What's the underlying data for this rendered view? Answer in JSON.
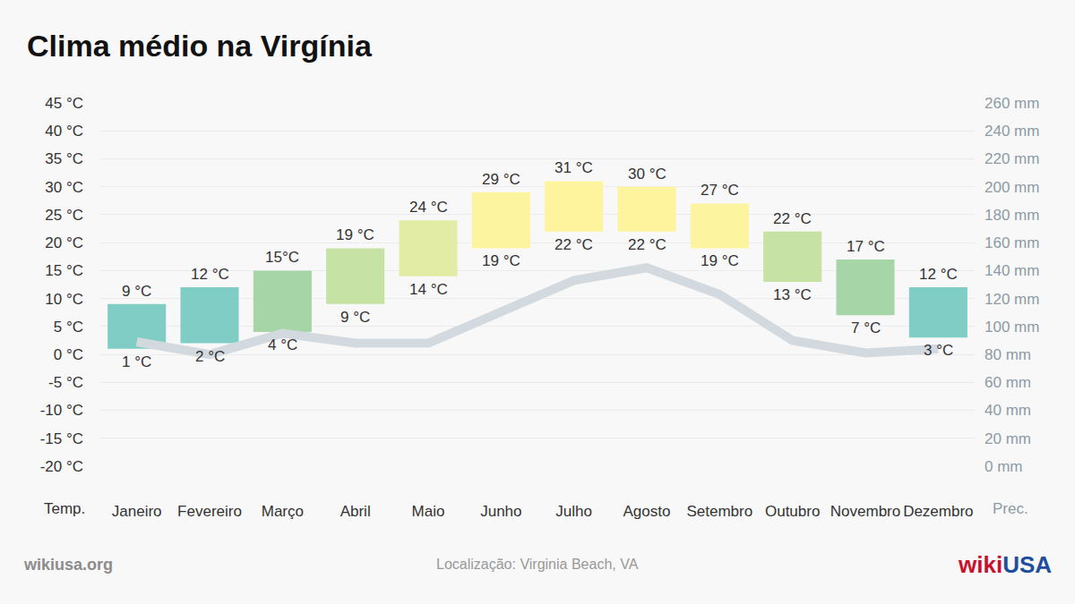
{
  "chart_data": {
    "type": "range_bar",
    "title": "Clima médio na Virgínia",
    "ylabel": "Temp.",
    "y2label": "Prec.",
    "source": "wikiusa.org",
    "note": "Localização: Virginia Beach, VA",
    "logo": {
      "parts": [
        "wiki",
        "USA"
      ],
      "colors": [
        "#c8102e",
        "#1f4e9c"
      ]
    },
    "categories": [
      "Janeiro",
      "Fevereiro",
      "Março",
      "Abril",
      "Maio",
      "Junho",
      "Julho",
      "Agosto",
      "Setembro",
      "Outubro",
      "Novembro",
      "Dezembro"
    ],
    "series": [
      {
        "type": "range_bar",
        "high": [
          9,
          12,
          15,
          19,
          24,
          29,
          31,
          30,
          27,
          22,
          17,
          12
        ],
        "high_labels": [
          "9 °C",
          "12 °C",
          "15°C",
          "19 °C",
          "24 °C",
          "29 °C",
          "31 °C",
          "30 °C",
          "27 °C",
          "22 °C",
          "17 °C",
          "12 °C"
        ],
        "low": [
          1,
          2,
          4,
          9,
          14,
          19,
          22,
          22,
          19,
          13,
          7,
          3
        ],
        "low_labels": [
          "1 °C",
          "2 °C",
          "4 °C",
          "9 °C",
          "14 °C",
          "19 °C",
          "22 °C",
          "22 °C",
          "19 °C",
          "13 °C",
          "7 °C",
          "3 °C"
        ],
        "colors": [
          "#7fcdc5",
          "#7fcdc5",
          "#a6d6a7",
          "#c6e3a5",
          "#e3eca5",
          "#fdf4a0",
          "#fdf49d",
          "#fdf49d",
          "#fdf4a0",
          "#c6e3a5",
          "#a6d6a7",
          "#7fcdc5"
        ]
      },
      {
        "type": "line",
        "axis": "y2",
        "color": "#d3dadf",
        "values": [
          89,
          80,
          95,
          88,
          88,
          111,
          133,
          142,
          123,
          90,
          81,
          84
        ]
      }
    ],
    "ylim": [
      -20,
      45
    ],
    "yticks": [
      {
        "value": -20,
        "label": "-20 °C"
      },
      {
        "value": -15,
        "label": "-15 °C"
      },
      {
        "value": -10,
        "label": "-10 °C"
      },
      {
        "value": -5,
        "label": "-5 °C"
      },
      {
        "value": 0,
        "label": "0 °C"
      },
      {
        "value": 5,
        "label": "5 °C"
      },
      {
        "value": 10,
        "label": "10 °C"
      },
      {
        "value": 15,
        "label": "15 °C"
      },
      {
        "value": 20,
        "label": "20 °C"
      },
      {
        "value": 25,
        "label": "25 °C"
      },
      {
        "value": 30,
        "label": "30 °C"
      },
      {
        "value": 35,
        "label": "35 °C"
      },
      {
        "value": 40,
        "label": "40 °C"
      },
      {
        "value": 45,
        "label": "45 °C"
      }
    ],
    "y2lim": [
      0,
      260
    ],
    "y2ticks": [
      {
        "value": 0,
        "label": "0 mm"
      },
      {
        "value": 20,
        "label": "20 mm"
      },
      {
        "value": 40,
        "label": "40 mm"
      },
      {
        "value": 60,
        "label": "60 mm"
      },
      {
        "value": 80,
        "label": "80 mm"
      },
      {
        "value": 100,
        "label": "100 mm"
      },
      {
        "value": 120,
        "label": "120 mm"
      },
      {
        "value": 140,
        "label": "140 mm"
      },
      {
        "value": 160,
        "label": "160 mm"
      },
      {
        "value": 180,
        "label": "180 mm"
      },
      {
        "value": 200,
        "label": "200 mm"
      },
      {
        "value": 220,
        "label": "220 mm"
      },
      {
        "value": 240,
        "label": "240 mm"
      },
      {
        "value": 260,
        "label": "260 mm"
      }
    ],
    "grid": true,
    "data_labels": true
  }
}
